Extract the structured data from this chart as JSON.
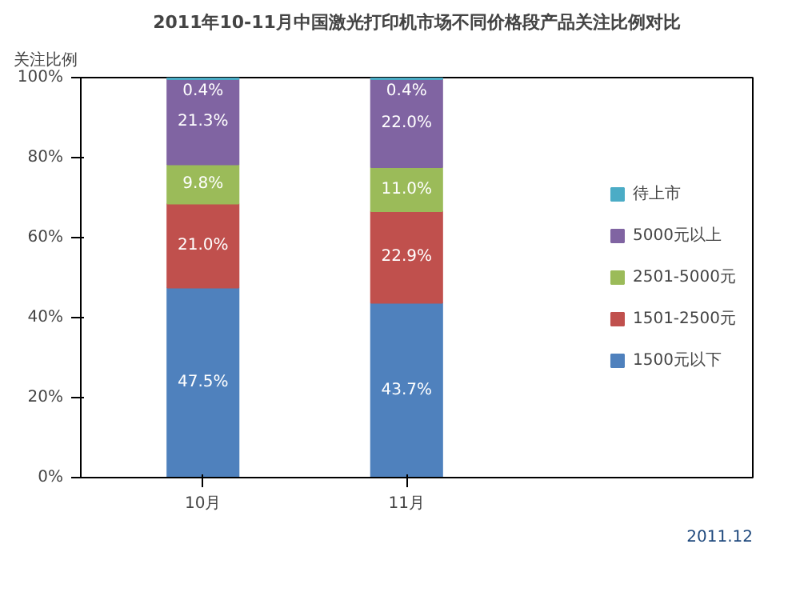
{
  "chart_data": {
    "type": "bar",
    "title": "2011年10-11月中国激光打印机市场不同价格段产品关注比例对比",
    "ylabel": "关注比例",
    "categories": [
      "10月",
      "11月"
    ],
    "stacked": true,
    "legend": "right",
    "grid": false,
    "ylim": [
      0,
      100
    ],
    "yticks": [
      {
        "value": 0,
        "label": "0%"
      },
      {
        "value": 20,
        "label": "20%"
      },
      {
        "value": 40,
        "label": "40%"
      },
      {
        "value": 60,
        "label": "60%"
      },
      {
        "value": 80,
        "label": "80%"
      },
      {
        "value": 100,
        "label": "100%"
      }
    ],
    "series": [
      {
        "name": "1500元以下",
        "color": "#4f81bd",
        "values": [
          47.5,
          43.7
        ],
        "value_labels": [
          "47.5%",
          "43.7%"
        ]
      },
      {
        "name": "1501-2500元",
        "color": "#c0504d",
        "values": [
          21.0,
          22.9
        ],
        "value_labels": [
          "21.0%",
          "22.9%"
        ]
      },
      {
        "name": "2501-5000元",
        "color": "#9bbb59",
        "values": [
          9.8,
          11.0
        ],
        "value_labels": [
          "9.8%",
          "11.0%"
        ]
      },
      {
        "name": "5000元以上",
        "color": "#8064a2",
        "values": [
          21.3,
          22.0
        ],
        "value_labels": [
          "21.3%",
          "22.0%"
        ]
      },
      {
        "name": "待上市",
        "color": "#4bacc6",
        "values": [
          0.4,
          0.4
        ],
        "value_labels": [
          "0.4%",
          "0.4%"
        ]
      }
    ],
    "annotations": [
      "2011.12"
    ]
  }
}
